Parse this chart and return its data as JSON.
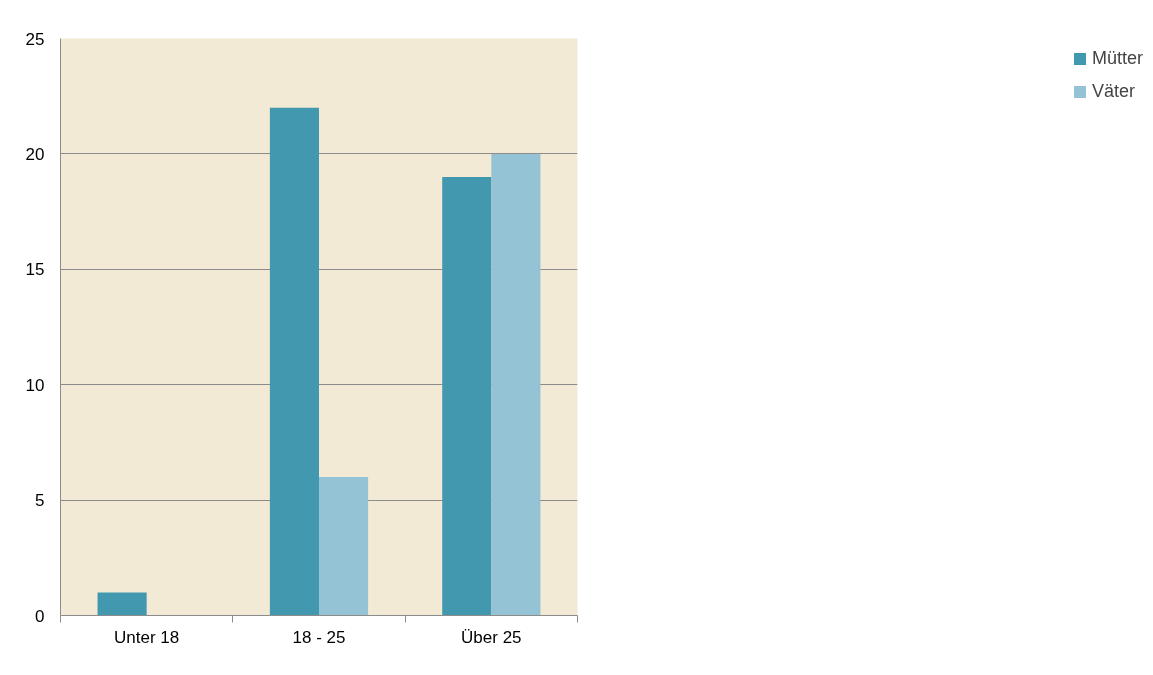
{
  "chart_data": {
    "type": "bar",
    "categories": [
      "Unter 18",
      "18 - 25",
      "Über 25"
    ],
    "series": [
      {
        "name": "Mütter",
        "color": "#4298ae",
        "values": [
          1,
          22,
          19
        ]
      },
      {
        "name": "Väter",
        "color": "#93c3d5",
        "values": [
          0,
          6,
          20
        ]
      }
    ],
    "ylim": [
      0,
      25
    ],
    "yticks": [
      0,
      5,
      10,
      15,
      20,
      25
    ],
    "grid": "y",
    "legend": "right"
  }
}
